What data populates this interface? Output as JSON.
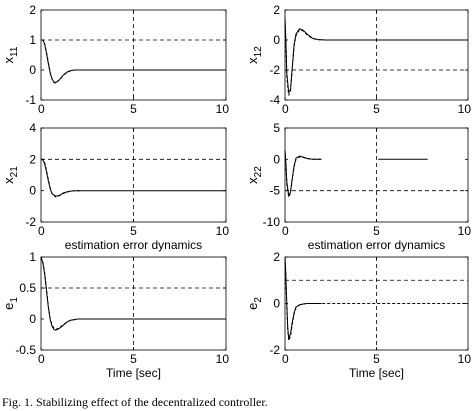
{
  "figure": {
    "caption": "Fig. 1.  Stabilizing effect of the decentralized controller."
  },
  "chart_data": [
    {
      "type": "line",
      "ylabel": "x",
      "ysub": "11",
      "xlabel": "",
      "xlim": [
        0,
        10
      ],
      "ylim": [
        -1,
        2
      ],
      "xticks": [
        "0",
        "5",
        "10"
      ],
      "yticks": [
        "-1",
        "0",
        "1",
        "2"
      ],
      "ref_hlines": [
        1
      ],
      "ref_vlines": [
        5
      ],
      "series": [
        {
          "style": "solid",
          "color": "#000000",
          "x": [
            0,
            0.1,
            0.2,
            0.3,
            0.4,
            0.5,
            0.6,
            0.7,
            0.8,
            1.0,
            1.2,
            1.4,
            1.6,
            1.8,
            2.0,
            2.5,
            10
          ],
          "y": [
            1.0,
            1.0,
            0.85,
            0.55,
            0.2,
            -0.12,
            -0.3,
            -0.4,
            -0.42,
            -0.32,
            -0.17,
            -0.07,
            -0.02,
            0.0,
            0.0,
            0.0,
            0.0
          ]
        },
        {
          "style": "dashed",
          "color": "#000000",
          "x": [
            0,
            0.1,
            0.2,
            0.3,
            0.4,
            0.5,
            0.6,
            0.7,
            0.8,
            1.0,
            1.2,
            1.4,
            1.6,
            1.8,
            2.0,
            2.5
          ],
          "y": [
            1.0,
            1.0,
            0.88,
            0.6,
            0.25,
            -0.1,
            -0.3,
            -0.42,
            -0.44,
            -0.33,
            -0.18,
            -0.08,
            -0.03,
            0.0,
            0.0,
            0.0
          ]
        }
      ]
    },
    {
      "type": "line",
      "ylabel": "x",
      "ysub": "12",
      "xlabel": "",
      "xlim": [
        0,
        10
      ],
      "ylim": [
        -4,
        2
      ],
      "xticks": [
        "0",
        "5",
        "10"
      ],
      "yticks": [
        "-4",
        "-2",
        "0",
        "2"
      ],
      "ref_hlines": [
        -2
      ],
      "ref_vlines": [
        5
      ],
      "series": [
        {
          "style": "solid",
          "color": "#000000",
          "x": [
            0,
            0.05,
            0.1,
            0.2,
            0.3,
            0.4,
            0.5,
            0.6,
            0.8,
            1.0,
            1.2,
            1.5,
            1.8,
            2.2,
            2.6,
            3.0,
            10
          ],
          "y": [
            1.5,
            0.0,
            -2.2,
            -3.5,
            -3.3,
            -1.8,
            -0.3,
            0.4,
            0.75,
            0.65,
            0.4,
            0.12,
            0.03,
            0.0,
            0.0,
            0.0,
            0.0
          ]
        },
        {
          "style": "dashed",
          "color": "#000000",
          "x": [
            0,
            0.05,
            0.1,
            0.2,
            0.3,
            0.4,
            0.5,
            0.6,
            0.8,
            1.0,
            1.2,
            1.5,
            1.8,
            2.2,
            2.6,
            3.0,
            10
          ],
          "y": [
            1.0,
            -0.3,
            -2.5,
            -3.7,
            -3.4,
            -1.9,
            -0.4,
            0.3,
            0.7,
            0.6,
            0.35,
            0.1,
            0.02,
            0.0,
            0.0,
            0.0,
            0.0
          ]
        }
      ]
    },
    {
      "type": "line",
      "ylabel": "x",
      "ysub": "21",
      "xlabel": "estimation error dynamics",
      "xlim": [
        0,
        10
      ],
      "ylim": [
        -2,
        4
      ],
      "xticks": [
        "0",
        "5",
        "10"
      ],
      "yticks": [
        "-2",
        "0",
        "2",
        "4"
      ],
      "ref_hlines": [
        2
      ],
      "ref_vlines": [
        5
      ],
      "series": [
        {
          "style": "solid",
          "color": "#000000",
          "x": [
            0,
            0.1,
            0.2,
            0.3,
            0.4,
            0.5,
            0.6,
            0.8,
            1.0,
            1.2,
            1.5,
            1.8,
            2.2,
            10
          ],
          "y": [
            2.0,
            1.95,
            1.7,
            1.2,
            0.6,
            0.1,
            -0.2,
            -0.35,
            -0.3,
            -0.15,
            -0.05,
            0.0,
            0.0,
            0.0
          ]
        },
        {
          "style": "dashed",
          "color": "#000000",
          "x": [
            0,
            0.1,
            0.2,
            0.3,
            0.4,
            0.5,
            0.6,
            0.8,
            1.0,
            1.2,
            1.5,
            1.8,
            2.2
          ],
          "y": [
            2.0,
            2.0,
            1.8,
            1.3,
            0.7,
            0.15,
            -0.2,
            -0.4,
            -0.32,
            -0.18,
            -0.06,
            0.0,
            0.0
          ]
        }
      ]
    },
    {
      "type": "line",
      "ylabel": "x",
      "ysub": "22",
      "xlabel": "estimation error dynamics",
      "xlim": [
        0,
        10
      ],
      "ylim": [
        -10,
        5
      ],
      "xticks": [
        "0",
        "5",
        "10"
      ],
      "yticks": [
        "-10",
        "-5",
        "0",
        "5"
      ],
      "ref_hlines": [
        -5
      ],
      "ref_vlines": [
        5
      ],
      "series": [
        {
          "style": "solid",
          "color": "#000000",
          "x": [
            0,
            0.05,
            0.1,
            0.2,
            0.3,
            0.4,
            0.5,
            0.6,
            0.8,
            1.0,
            1.2,
            1.4,
            1.6,
            1.8,
            2.0
          ],
          "y": [
            1.5,
            -0.5,
            -3.5,
            -5.8,
            -5.2,
            -3.0,
            -1.0,
            0.2,
            0.5,
            0.35,
            0.15,
            0.05,
            0.0,
            0.0,
            0.0
          ]
        },
        {
          "style": "dashed",
          "color": "#000000",
          "x": [
            0,
            0.05,
            0.1,
            0.2,
            0.3,
            0.4,
            0.5,
            0.6,
            0.8,
            1.0,
            1.2,
            1.4,
            1.6,
            1.8,
            2.0
          ],
          "y": [
            1.0,
            -1.0,
            -4.0,
            -6.0,
            -5.4,
            -3.2,
            -1.2,
            0.0,
            0.4,
            0.3,
            0.12,
            0.03,
            0.0,
            0.0,
            0.0
          ]
        },
        {
          "style": "solid",
          "color": "#000000",
          "x": [
            5.1,
            7.8
          ],
          "y": [
            0.0,
            0.0
          ]
        }
      ]
    },
    {
      "type": "line",
      "ylabel": "e",
      "ysub": "1",
      "xlabel": "Time [sec]",
      "xlim": [
        0,
        10
      ],
      "ylim": [
        -0.5,
        1
      ],
      "xticks": [
        "0",
        "5",
        "10"
      ],
      "yticks": [
        "-0.5",
        "0",
        "0.5",
        "1"
      ],
      "ref_hlines": [
        0.5
      ],
      "ref_vlines": [
        5
      ],
      "series": [
        {
          "style": "solid",
          "color": "#000000",
          "x": [
            0,
            0.1,
            0.2,
            0.3,
            0.4,
            0.5,
            0.6,
            0.7,
            0.8,
            1.0,
            1.2,
            1.4,
            1.6,
            1.8,
            2.0,
            2.5,
            10
          ],
          "y": [
            1.0,
            0.9,
            0.72,
            0.45,
            0.18,
            -0.02,
            -0.12,
            -0.17,
            -0.18,
            -0.15,
            -0.1,
            -0.05,
            -0.02,
            -0.01,
            0.0,
            0.0,
            0.0
          ]
        },
        {
          "style": "dashed",
          "color": "#000000",
          "x": [
            0,
            0.1,
            0.2,
            0.3,
            0.4,
            0.5,
            0.6,
            0.7,
            0.8,
            1.0,
            1.2,
            1.4,
            1.6,
            1.8,
            2.0,
            2.5
          ],
          "y": [
            1.0,
            0.92,
            0.75,
            0.48,
            0.2,
            0.0,
            -0.1,
            -0.15,
            -0.17,
            -0.14,
            -0.09,
            -0.05,
            -0.02,
            -0.01,
            0.0,
            0.0
          ]
        }
      ]
    },
    {
      "type": "line",
      "ylabel": "e",
      "ysub": "2",
      "xlabel": "Time [sec]",
      "xlim": [
        0,
        10
      ],
      "ylim": [
        -2,
        2
      ],
      "xticks": [
        "0",
        "5",
        "10"
      ],
      "yticks": [
        "-2",
        "0",
        "2"
      ],
      "ref_hlines": [
        1
      ],
      "ref_vlines": [
        5
      ],
      "series": [
        {
          "style": "solid",
          "color": "#000000",
          "x": [
            0,
            0.05,
            0.1,
            0.15,
            0.2,
            0.3,
            0.4,
            0.5,
            0.6,
            0.8,
            1.0,
            1.2,
            1.5,
            1.8,
            2.0
          ],
          "y": [
            2.0,
            1.2,
            0.0,
            -1.0,
            -1.5,
            -1.3,
            -0.8,
            -0.4,
            -0.15,
            -0.05,
            -0.02,
            0.0,
            0.0,
            0.0,
            0.0
          ]
        },
        {
          "style": "dashed",
          "color": "#000000",
          "x": [
            0,
            0.05,
            0.1,
            0.15,
            0.2,
            0.3,
            0.4,
            0.5,
            0.6,
            0.8,
            1.0,
            1.2,
            1.5,
            1.8,
            2.0,
            10
          ],
          "y": [
            2.0,
            1.0,
            -0.2,
            -1.1,
            -1.6,
            -1.4,
            -0.9,
            -0.45,
            -0.18,
            -0.06,
            -0.02,
            0.0,
            0.0,
            0.0,
            0.0,
            0.0
          ]
        }
      ]
    }
  ]
}
